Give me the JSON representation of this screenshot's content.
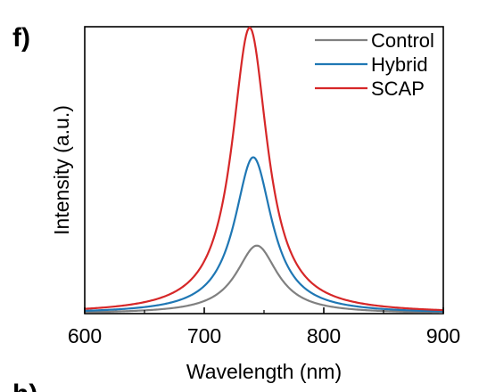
{
  "panel_label": "f)",
  "next_panel_label": "h)",
  "chart_data": {
    "type": "line",
    "xlabel": "Wavelength (nm)",
    "ylabel": "Intensity (a.u.)",
    "xlim": [
      600,
      900
    ],
    "ylim": [
      0,
      1.0
    ],
    "x_ticks": [
      600,
      700,
      800,
      900
    ],
    "x_tick_labels": [
      "600",
      "700",
      "800",
      "900"
    ],
    "y_tick_labels_shown": false,
    "grid": false,
    "legend_position": "top-right",
    "series": [
      {
        "name": "Control",
        "color": "#808080",
        "peak_x": 744,
        "peak_y": 0.237,
        "hwhm": 21,
        "x": [
          600,
          650,
          700,
          720,
          735,
          744,
          755,
          770,
          800,
          850,
          900
        ],
        "y": [
          0.004,
          0.012,
          0.042,
          0.104,
          0.201,
          0.237,
          0.186,
          0.093,
          0.029,
          0.009,
          0.004
        ]
      },
      {
        "name": "Hybrid",
        "color": "#1f77b4",
        "peak_x": 741,
        "peak_y": 0.545,
        "hwhm": 19,
        "x": [
          600,
          650,
          700,
          720,
          730,
          741,
          750,
          765,
          800,
          850,
          900
        ],
        "y": [
          0.01,
          0.023,
          0.097,
          0.245,
          0.411,
          0.545,
          0.448,
          0.248,
          0.051,
          0.016,
          0.008
        ]
      },
      {
        "name": "SCAP",
        "color": "#d62728",
        "peak_x": 738,
        "peak_y": 0.997,
        "hwhm": 18,
        "x": [
          600,
          650,
          700,
          720,
          730,
          738,
          750,
          765,
          800,
          850,
          900
        ],
        "y": [
          0.017,
          0.041,
          0.184,
          0.497,
          0.834,
          0.997,
          0.681,
          0.305,
          0.078,
          0.026,
          0.014
        ]
      }
    ]
  }
}
